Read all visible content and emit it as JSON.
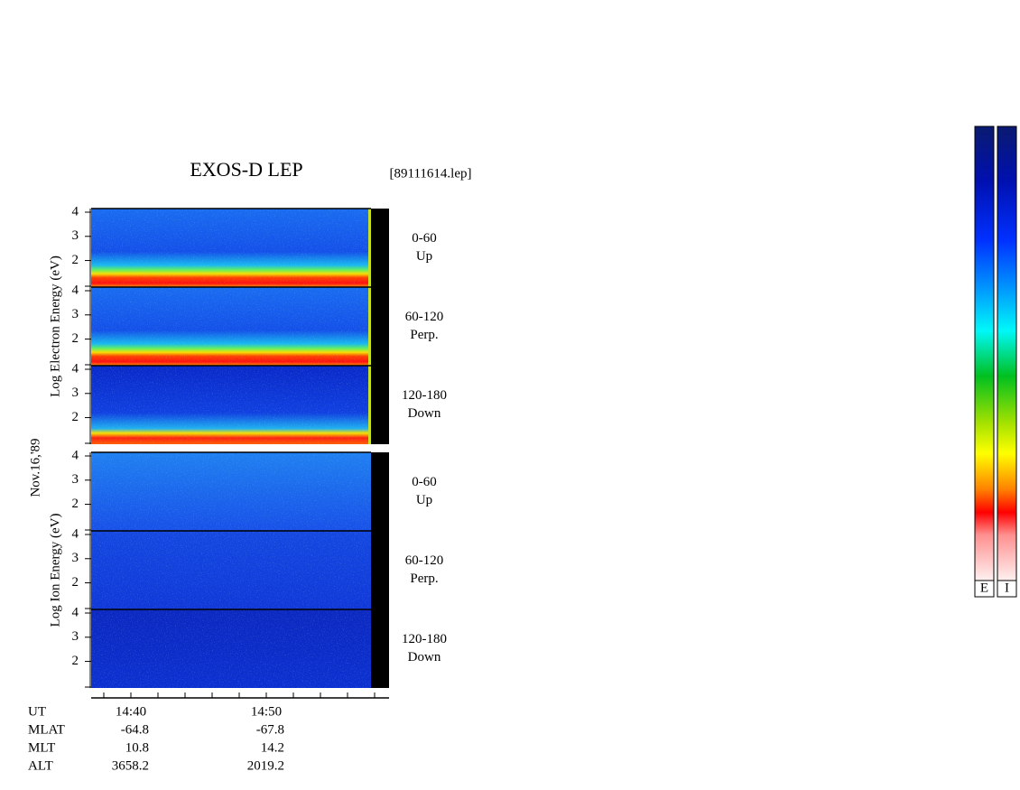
{
  "title": "EXOS-D LEP",
  "file": "[89111614.lep]",
  "date": "Nov.16,'89",
  "ylim": [
    0.9,
    4.15
  ],
  "yticks": [
    2,
    3,
    4
  ],
  "groups": [
    {
      "label": "Log Electron Energy (eV)",
      "panels": [
        {
          "range": "0-60",
          "direction": "Up"
        },
        {
          "range": "60-120",
          "direction": "Perp."
        },
        {
          "range": "120-180",
          "direction": "Down"
        }
      ]
    },
    {
      "label": "Log Ion Energy (eV)",
      "panels": [
        {
          "range": "0-60",
          "direction": "Up"
        },
        {
          "range": "60-120",
          "direction": "Perp."
        },
        {
          "range": "120-180",
          "direction": "Down"
        }
      ]
    }
  ],
  "orbit": {
    "labels": [
      "UT",
      "MLAT",
      "MLT",
      "ALT"
    ],
    "columns": [
      {
        "UT": "14:40",
        "MLAT": -64.8,
        "MLT": 10.8,
        "ALT": 3658.2
      },
      {
        "UT": "14:50",
        "MLAT": -67.8,
        "MLT": 14.2,
        "ALT": 2019.2
      }
    ]
  },
  "colorbars": [
    "E",
    "I"
  ]
}
